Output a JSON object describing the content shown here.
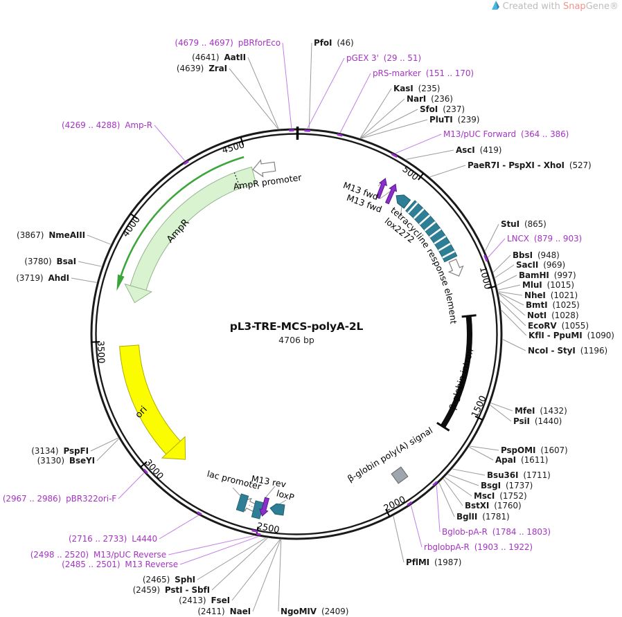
{
  "watermark": {
    "prefix": "Created with ",
    "brand_red": "Snap",
    "brand_gray": "Gene®"
  },
  "plasmid": {
    "name": "pL3-TRE-MCS-polyA-2L",
    "size": "4706 bp"
  },
  "ticks": [
    "500",
    "1000",
    "1500",
    "2000",
    "2500",
    "3000",
    "3500",
    "4000",
    "4500"
  ],
  "site_labels": [
    {
      "name": "PfoI",
      "pos": "(46)",
      "type": "enzyme"
    },
    {
      "name": "pGEX 3'",
      "pos": "(29 .. 51)",
      "type": "primer"
    },
    {
      "name": "pRS-marker",
      "pos": "(151 .. 170)",
      "type": "primer"
    },
    {
      "name": "KasI",
      "pos": "(235)",
      "type": "enzyme"
    },
    {
      "name": "NarI",
      "pos": "(236)",
      "type": "enzyme"
    },
    {
      "name": "SfoI",
      "pos": "(237)",
      "type": "enzyme"
    },
    {
      "name": "PluTI",
      "pos": "(239)",
      "type": "enzyme"
    },
    {
      "name": "M13/pUC Forward",
      "pos": "(364 .. 386)",
      "type": "primer"
    },
    {
      "name": "AscI",
      "pos": "(419)",
      "type": "enzyme"
    },
    {
      "name": "PaeR7I - PspXI - XhoI",
      "pos": "(527)",
      "type": "enzyme"
    },
    {
      "name": "StuI",
      "pos": "(865)",
      "type": "enzyme"
    },
    {
      "name": "LNCX",
      "pos": "(879 .. 903)",
      "type": "primer"
    },
    {
      "name": "BbsI",
      "pos": "(948)",
      "type": "enzyme"
    },
    {
      "name": "SacII",
      "pos": "(969)",
      "type": "enzyme"
    },
    {
      "name": "BamHI",
      "pos": "(997)",
      "type": "enzyme"
    },
    {
      "name": "MluI",
      "pos": "(1015)",
      "type": "enzyme"
    },
    {
      "name": "NheI",
      "pos": "(1021)",
      "type": "enzyme"
    },
    {
      "name": "BmtI",
      "pos": "(1025)",
      "type": "enzyme"
    },
    {
      "name": "NotI",
      "pos": "(1028)",
      "type": "enzyme"
    },
    {
      "name": "EcoRV",
      "pos": "(1055)",
      "type": "enzyme"
    },
    {
      "name": "KflI - PpuMI",
      "pos": "(1090)",
      "type": "enzyme"
    },
    {
      "name": "NcoI - StyI",
      "pos": "(1196)",
      "type": "enzyme"
    },
    {
      "name": "MfeI",
      "pos": "(1432)",
      "type": "enzyme"
    },
    {
      "name": "PsiI",
      "pos": "(1440)",
      "type": "enzyme"
    },
    {
      "name": "PspOMI",
      "pos": "(1607)",
      "type": "enzyme"
    },
    {
      "name": "ApaI",
      "pos": "(1611)",
      "type": "enzyme"
    },
    {
      "name": "Bsu36I",
      "pos": "(1711)",
      "type": "enzyme"
    },
    {
      "name": "BsgI",
      "pos": "(1737)",
      "type": "enzyme"
    },
    {
      "name": "MscI",
      "pos": "(1752)",
      "type": "enzyme"
    },
    {
      "name": "BstXI",
      "pos": "(1760)",
      "type": "enzyme"
    },
    {
      "name": "BglII",
      "pos": "(1781)",
      "type": "enzyme"
    },
    {
      "name": "Bglob-pA-R",
      "pos": "(1784 .. 1803)",
      "type": "primer"
    },
    {
      "name": "rbglobpA-R",
      "pos": "(1903 .. 1922)",
      "type": "primer"
    },
    {
      "name": "PflMI",
      "pos": "(1987)",
      "type": "enzyme"
    },
    {
      "name": "NgoMIV",
      "pos": "(2409)",
      "type": "enzyme"
    },
    {
      "name": "NaeI",
      "pos": "(2411)",
      "type": "enzyme"
    },
    {
      "name": "FseI",
      "pos": "(2413)",
      "type": "enzyme"
    },
    {
      "name": "PstI - SbfI",
      "pos": "(2459)",
      "type": "enzyme"
    },
    {
      "name": "SphI",
      "pos": "(2465)",
      "type": "enzyme"
    },
    {
      "name": "M13 Reverse",
      "pos": "(2485 .. 2501)",
      "type": "primer"
    },
    {
      "name": "M13/pUC Reverse",
      "pos": "(2498 .. 2520)",
      "type": "primer"
    },
    {
      "name": "L4440",
      "pos": "(2716 .. 2733)",
      "type": "primer"
    },
    {
      "name": "pBR322ori-F",
      "pos": "(2967 .. 2986)",
      "type": "primer"
    },
    {
      "name": "BseYI",
      "pos": "(3130)",
      "type": "enzyme"
    },
    {
      "name": "PspFI",
      "pos": "(3134)",
      "type": "enzyme"
    },
    {
      "name": "AhdI",
      "pos": "(3719)",
      "type": "enzyme"
    },
    {
      "name": "BsaI",
      "pos": "(3780)",
      "type": "enzyme"
    },
    {
      "name": "NmeAIII",
      "pos": "(3867)",
      "type": "enzyme"
    },
    {
      "name": "Amp-R",
      "pos": "(4269 .. 4288)",
      "type": "primer"
    },
    {
      "name": "ZraI",
      "pos": "(4639)",
      "type": "enzyme"
    },
    {
      "name": "AatII",
      "pos": "(4641)",
      "type": "enzyme"
    },
    {
      "name": "pBRforEco",
      "pos": "(4679 .. 4697)",
      "type": "primer"
    }
  ],
  "features": {
    "ampr_promoter": "AmpR promoter",
    "ampr": "AmpR",
    "ori": "ori",
    "lac_promoter": "lac promoter",
    "m13_rev": "M13 rev",
    "loxp": "loxP",
    "m13_fwd_1": "M13 fwd",
    "m13_fwd_2": "M13 fwd",
    "lox2272": "lox2272",
    "tre": "tetracycline response element",
    "bglobin_intron": "β-globin intron",
    "bglobin_polya": "β-globin poly(A) signal"
  },
  "colors": {
    "primer_text": "#A434C4",
    "primer_mark": "#9B2FD0",
    "callout_primer": "#C07FE8",
    "callout_gray": "#9A9A9A",
    "teal_feature": "#2E7F95",
    "teal_stroke": "#1C5B6B",
    "green_fill": "#D9F2D0",
    "green_stroke": "#93B58E",
    "green_cds_line": "#3CA53A",
    "yellow_fill": "#FCFC00",
    "yellow_stroke": "#ADAD00",
    "purple_arrow": "#8B2FC9",
    "purple_arrow_stroke": "#5A1593",
    "gray_box": "#9EA5AC",
    "gray_box_stroke": "#63676D",
    "ring": "#1A1A1A"
  }
}
